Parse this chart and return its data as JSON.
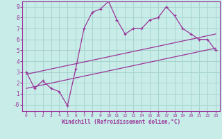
{
  "xlabel": "Windchill (Refroidissement éolien,°C)",
  "background_color": "#c8ede8",
  "grid_color": "#a8d4ce",
  "line_color": "#993399",
  "border_color": "#993399",
  "xlim": [
    -0.5,
    23.5
  ],
  "ylim": [
    -0.6,
    9.5
  ],
  "xticks": [
    0,
    1,
    2,
    3,
    4,
    5,
    6,
    7,
    8,
    9,
    10,
    11,
    12,
    13,
    14,
    15,
    16,
    17,
    18,
    19,
    20,
    21,
    22,
    23
  ],
  "yticks": [
    0,
    1,
    2,
    3,
    4,
    5,
    6,
    7,
    8,
    9
  ],
  "ytick_labels": [
    "-0",
    "1",
    "2",
    "3",
    "4",
    "5",
    "6",
    "7",
    "8",
    "9"
  ],
  "data_x": [
    0,
    1,
    2,
    3,
    4,
    5,
    6,
    7,
    8,
    9,
    10,
    11,
    12,
    13,
    14,
    15,
    16,
    17,
    18,
    19,
    20,
    21,
    22,
    23
  ],
  "data_y": [
    3.0,
    1.5,
    2.2,
    1.5,
    1.2,
    -0.1,
    3.3,
    7.0,
    8.5,
    8.8,
    9.5,
    7.8,
    6.5,
    7.0,
    7.0,
    7.8,
    8.0,
    9.0,
    8.2,
    7.0,
    6.5,
    6.0,
    6.0,
    5.0
  ],
  "line1_x": [
    0,
    23
  ],
  "line1_y": [
    2.8,
    6.5
  ],
  "line2_x": [
    0,
    23
  ],
  "line2_y": [
    1.5,
    5.2
  ]
}
